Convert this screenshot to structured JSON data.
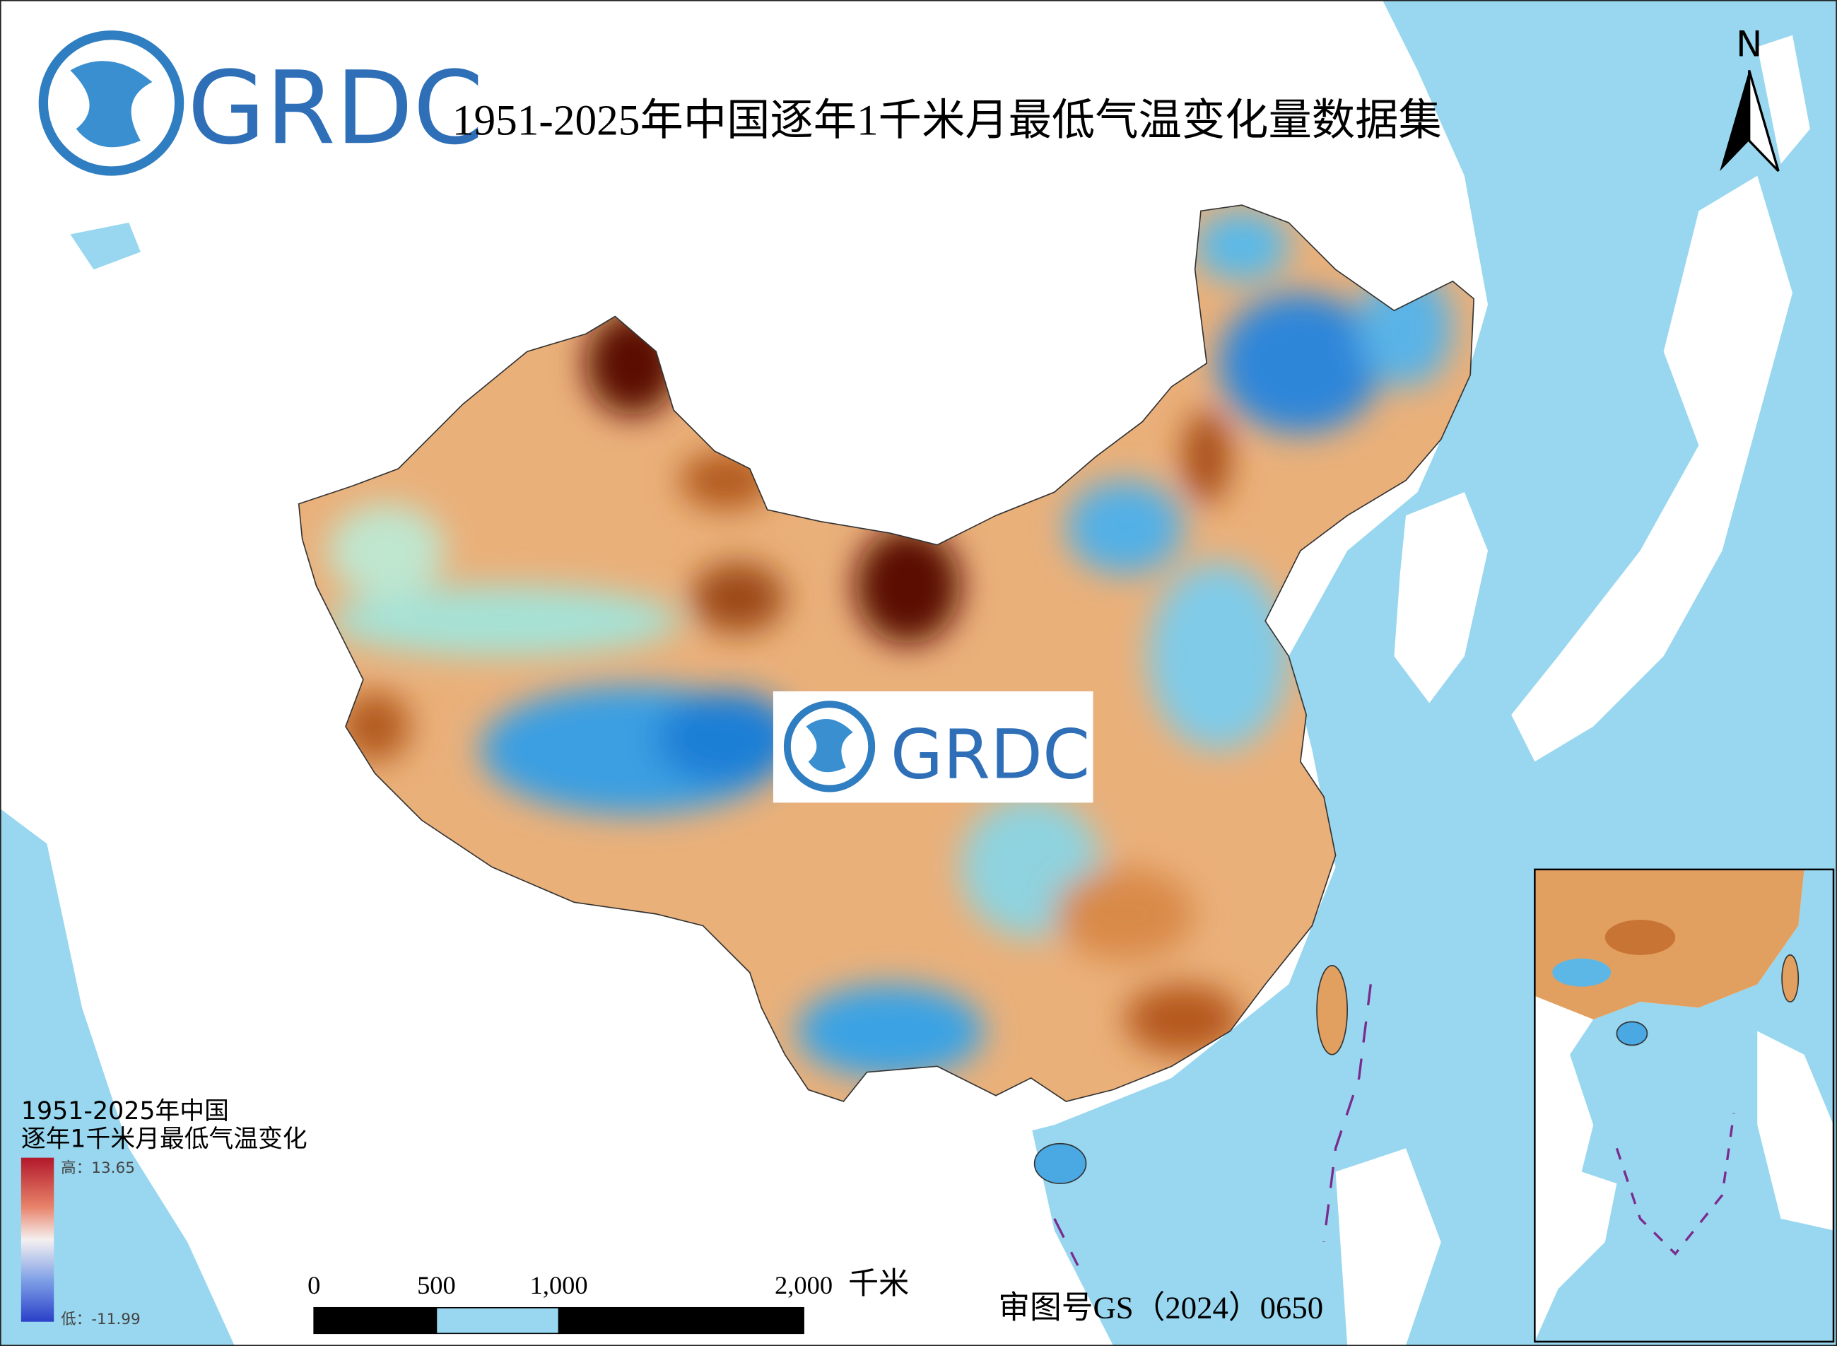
{
  "logo": {
    "text": "GRDC"
  },
  "title": "1951-2025年中国逐年1千米月最低气温变化量数据集",
  "north_arrow": {
    "label": "N"
  },
  "watermark": {
    "text": "GRDC"
  },
  "legend": {
    "title": [
      "1951-2025年中国",
      "逐年1千米月最低气温变化"
    ],
    "high": "高：13.65",
    "low": "低：-11.99"
  },
  "scale_bar": {
    "ticks": [
      0,
      500,
      {
        "value": 1000,
        "label": "1,000"
      },
      {
        "value": 2000,
        "label": "2,000"
      }
    ],
    "unit": "千米"
  },
  "approval": "审图号GS（2024）0650"
}
